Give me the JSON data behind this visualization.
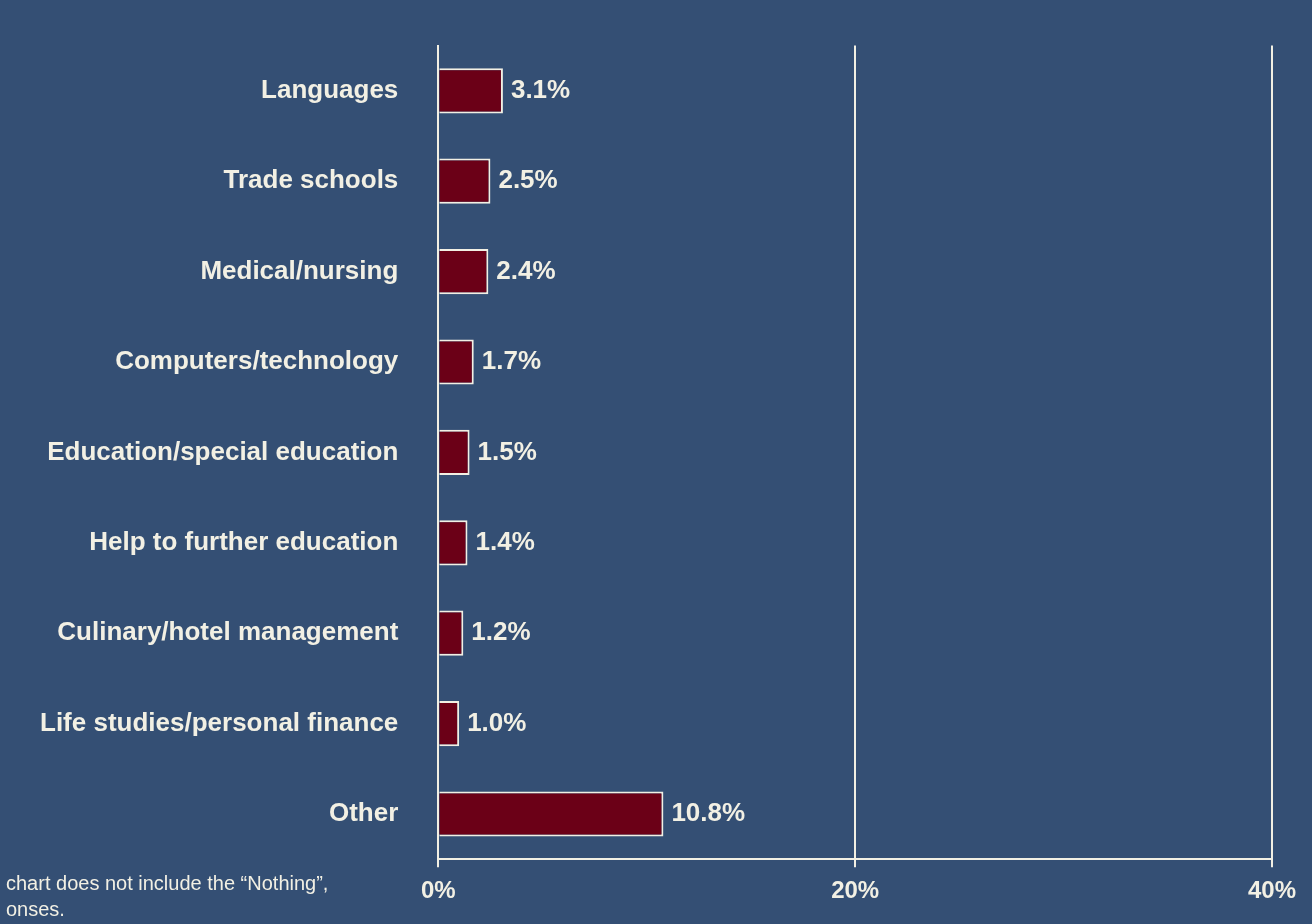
{
  "chart_data": {
    "type": "bar",
    "orientation": "horizontal",
    "categories": [
      "Languages",
      "Trade schools",
      "Medical/nursing",
      "Computers/technology",
      "Education/special education",
      "Help to further education",
      "Culinary/hotel management",
      "Life studies/personal finance",
      "Other"
    ],
    "values": [
      3.1,
      2.5,
      2.4,
      1.7,
      1.5,
      1.4,
      1.2,
      1.0,
      10.8
    ],
    "value_labels": [
      "3.1%",
      "2.5%",
      "2.4%",
      "1.7%",
      "1.5%",
      "1.4%",
      "1.2%",
      "1.0%",
      "10.8%"
    ],
    "color": "#6b0017",
    "xlim": [
      0,
      40
    ],
    "xticks": [
      {
        "value": 0,
        "label": "0%"
      },
      {
        "value": 20,
        "label": "20%"
      },
      {
        "value": 40,
        "label": "40%"
      }
    ],
    "grid": "x",
    "legend": false,
    "annotations": [
      "chart does not include the “Nothing”,",
      "onses."
    ]
  }
}
